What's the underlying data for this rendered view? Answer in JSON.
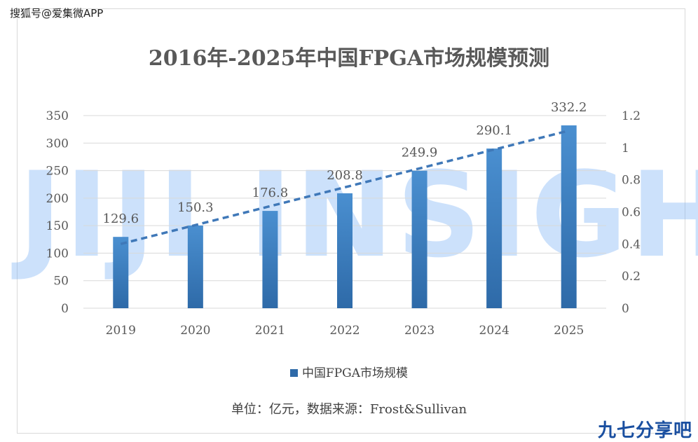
{
  "source_mark": "搜狐号@爱集微APP",
  "watermark": "JIJI INSIGHTS",
  "corner_mark": "九七分享吧",
  "unit_note": "单位：亿元，数据来源：Frost&Sullivan",
  "colors": {
    "bar": "#2e6aa8",
    "bar_light": "#4a8fd0",
    "trend": "#3f78b8",
    "grid": "#d9d9d9",
    "text": "#595959"
  },
  "chart_data": {
    "type": "bar",
    "title": "2016年-2025年中国FPGA市场规模预测",
    "categories": [
      "2019",
      "2020",
      "2021",
      "2022",
      "2023",
      "2024",
      "2025"
    ],
    "series": [
      {
        "name": "中国FPGA市场规模",
        "values": [
          129.6,
          150.3,
          176.8,
          208.8,
          249.9,
          290.1,
          332.2
        ]
      }
    ],
    "data_labels": [
      "129.6",
      "150.3",
      "176.8",
      "208.8",
      "249.9",
      "290.1",
      "332.2"
    ],
    "ylim": [
      0,
      350
    ],
    "y_ticks": [
      "0",
      "50",
      "100",
      "150",
      "200",
      "250",
      "300",
      "350"
    ],
    "y2lim": [
      0,
      1.2
    ],
    "y2_ticks": [
      "0",
      "0.2",
      "0.4",
      "0.6",
      "0.8",
      "1",
      "1.2"
    ],
    "trendline": {
      "type": "linear",
      "style": "dashed"
    },
    "grid": true,
    "legend_position": "bottom"
  }
}
